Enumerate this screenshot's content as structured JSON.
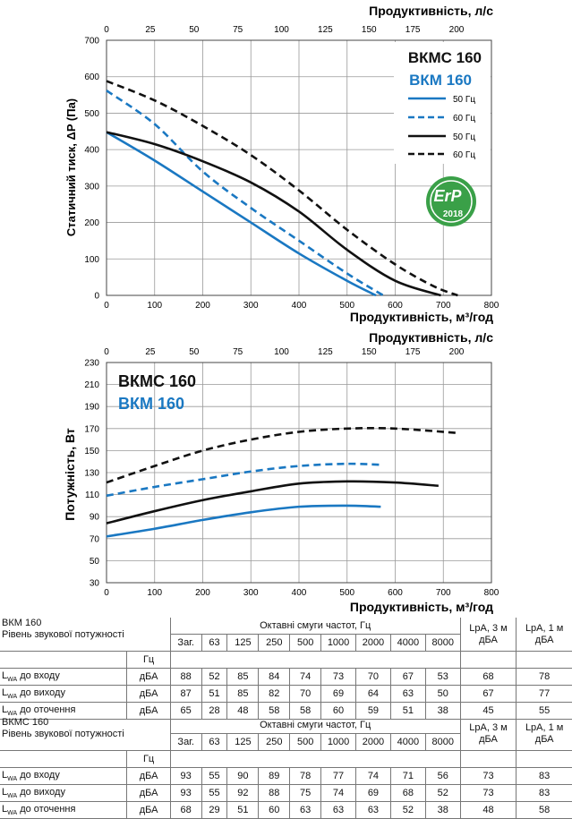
{
  "colors": {
    "blue": "#1a78c2",
    "black": "#111111",
    "erp_green": "#3aa048"
  },
  "chart_data": [
    {
      "type": "line",
      "ylabel": "Статичний тиск, ΔP (Па)",
      "xlabel": "Продуктивність, м³/год",
      "x2label": "Продуктивність, л/с",
      "xlim": [
        0,
        800
      ],
      "ylim": [
        0,
        700
      ],
      "x_ticks": [
        "0",
        "100",
        "200",
        "300",
        "400",
        "500",
        "600",
        "700",
        "800"
      ],
      "y_ticks": [
        "0",
        "100",
        "200",
        "300",
        "400",
        "500",
        "600",
        "700"
      ],
      "x2_ticks": [
        "0",
        "25",
        "50",
        "75",
        "100",
        "125",
        "150",
        "175",
        "200"
      ],
      "grid": true,
      "title_lines": [
        "ВКМС 160",
        "ВКМ 160"
      ],
      "legend": [
        "50 Гц",
        "60 Гц",
        "50 Гц",
        "60 Гц"
      ],
      "badge": {
        "text": "ErP",
        "year": "2018"
      },
      "series": [
        {
          "name": "ВКМ 160 50 Гц",
          "color": "blue",
          "dash": false,
          "points": [
            [
              0,
              448
            ],
            [
              100,
              370
            ],
            [
              200,
              285
            ],
            [
              300,
              200
            ],
            [
              400,
              115
            ],
            [
              500,
              40
            ],
            [
              560,
              0
            ]
          ]
        },
        {
          "name": "ВКМ 160 60 Гц",
          "color": "blue",
          "dash": true,
          "points": [
            [
              0,
              562
            ],
            [
              100,
              470
            ],
            [
              200,
              340
            ],
            [
              300,
              240
            ],
            [
              400,
              150
            ],
            [
              500,
              60
            ],
            [
              575,
              0
            ]
          ]
        },
        {
          "name": "ВКМС 160 50 Гц",
          "color": "black",
          "dash": false,
          "points": [
            [
              0,
              448
            ],
            [
              100,
              415
            ],
            [
              200,
              368
            ],
            [
              300,
              310
            ],
            [
              400,
              230
            ],
            [
              500,
              125
            ],
            [
              600,
              40
            ],
            [
              695,
              0
            ]
          ]
        },
        {
          "name": "ВКМС 160 60 Гц",
          "color": "black",
          "dash": true,
          "points": [
            [
              0,
              588
            ],
            [
              100,
              535
            ],
            [
              200,
              465
            ],
            [
              300,
              385
            ],
            [
              400,
              288
            ],
            [
              500,
              180
            ],
            [
              600,
              85
            ],
            [
              680,
              25
            ],
            [
              730,
              0
            ]
          ]
        }
      ]
    },
    {
      "type": "line",
      "ylabel": "Потужність, Вт",
      "xlabel": "Продуктивність, м³/год",
      "x2label": "Продуктивність, л/с",
      "xlim": [
        0,
        800
      ],
      "ylim": [
        30,
        230
      ],
      "x_ticks": [
        "0",
        "100",
        "200",
        "300",
        "400",
        "500",
        "600",
        "700",
        "800"
      ],
      "y_ticks": [
        "30",
        "50",
        "70",
        "90",
        "110",
        "130",
        "150",
        "170",
        "190",
        "210",
        "230"
      ],
      "x2_ticks": [
        "0",
        "25",
        "50",
        "75",
        "100",
        "125",
        "150",
        "175",
        "200"
      ],
      "grid": true,
      "title_lines": [
        "ВКМС 160",
        "ВКМ 160"
      ],
      "series": [
        {
          "name": "ВКМ 160 50 Гц",
          "color": "blue",
          "dash": false,
          "points": [
            [
              0,
              72
            ],
            [
              100,
              79
            ],
            [
              200,
              87
            ],
            [
              300,
              94
            ],
            [
              400,
              99
            ],
            [
              500,
              100
            ],
            [
              570,
              99
            ]
          ]
        },
        {
          "name": "ВКМ 160 60 Гц",
          "color": "blue",
          "dash": true,
          "points": [
            [
              0,
              109
            ],
            [
              100,
              117
            ],
            [
              200,
              124
            ],
            [
              300,
              131
            ],
            [
              400,
              136
            ],
            [
              500,
              138
            ],
            [
              575,
              137
            ]
          ]
        },
        {
          "name": "ВКМС 160 50 Гц",
          "color": "black",
          "dash": false,
          "points": [
            [
              0,
              84
            ],
            [
              100,
              95
            ],
            [
              200,
              105
            ],
            [
              300,
              113
            ],
            [
              400,
              120
            ],
            [
              500,
              122
            ],
            [
              600,
              121
            ],
            [
              690,
              118
            ]
          ]
        },
        {
          "name": "ВКМС 160 60 Гц",
          "color": "black",
          "dash": true,
          "points": [
            [
              0,
              121
            ],
            [
              100,
              136
            ],
            [
              200,
              150
            ],
            [
              300,
              160
            ],
            [
              400,
              167
            ],
            [
              500,
              170
            ],
            [
              600,
              170
            ],
            [
              730,
              166
            ]
          ]
        }
      ]
    }
  ],
  "tables": [
    {
      "name": "ВКМ 160",
      "subtitle": "Рівень звукової потужності",
      "bands_header": "Октавні смуги частот, Гц",
      "lpa3": "LpA, 3 м дБА",
      "lpa1": "LpA, 1 м дБА",
      "hz": "Гц",
      "cols": [
        "Заг.",
        "63",
        "125",
        "250",
        "500",
        "1000",
        "2000",
        "4000",
        "8000"
      ],
      "rows": [
        {
          "label": "до входу",
          "unit": "дБА",
          "values": [
            "88",
            "52",
            "85",
            "84",
            "74",
            "73",
            "70",
            "67",
            "53"
          ],
          "lpa3": "68",
          "lpa1": "78"
        },
        {
          "label": "до виходу",
          "unit": "дБА",
          "values": [
            "87",
            "51",
            "85",
            "82",
            "70",
            "69",
            "64",
            "63",
            "50"
          ],
          "lpa3": "67",
          "lpa1": "77"
        },
        {
          "label": "до оточення",
          "unit": "дБА",
          "values": [
            "65",
            "28",
            "48",
            "58",
            "58",
            "60",
            "59",
            "51",
            "38"
          ],
          "lpa3": "45",
          "lpa1": "55"
        }
      ]
    },
    {
      "name": "ВКМС 160",
      "subtitle": "Рівень звукової потужності",
      "bands_header": "Октавні смуги частот, Гц",
      "lpa3": "LpA, 3 м дБА",
      "lpa1": "LpA, 1 м дБА",
      "hz": "Гц",
      "cols": [
        "Заг.",
        "63",
        "125",
        "250",
        "500",
        "1000",
        "2000",
        "4000",
        "8000"
      ],
      "rows": [
        {
          "label": "до входу",
          "unit": "дБА",
          "values": [
            "93",
            "55",
            "90",
            "89",
            "78",
            "77",
            "74",
            "71",
            "56"
          ],
          "lpa3": "73",
          "lpa1": "83"
        },
        {
          "label": "до виходу",
          "unit": "дБА",
          "values": [
            "93",
            "55",
            "92",
            "88",
            "75",
            "74",
            "69",
            "68",
            "52"
          ],
          "lpa3": "73",
          "lpa1": "83"
        },
        {
          "label": "до оточення",
          "unit": "дБА",
          "values": [
            "68",
            "29",
            "51",
            "60",
            "63",
            "63",
            "63",
            "52",
            "38"
          ],
          "lpa3": "48",
          "lpa1": "58"
        }
      ]
    }
  ]
}
